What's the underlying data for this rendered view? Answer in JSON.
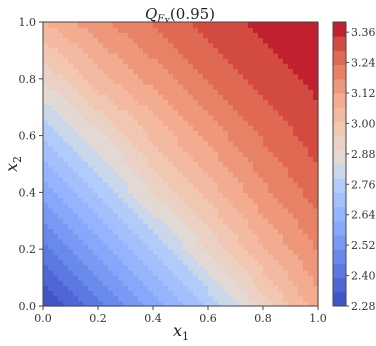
{
  "chart_data": {
    "type": "heatmap",
    "title": "Q_{F_X}(0.95)",
    "title_main": "Q",
    "title_sub": "F",
    "title_subsub": "X",
    "title_arg": "(0.95)",
    "xlabel": "x",
    "xlabel_sub": "1",
    "ylabel": "x",
    "ylabel_sub": "2",
    "xlim": [
      0.0,
      1.0
    ],
    "ylim": [
      0.0,
      1.0
    ],
    "x_ticks": [
      "0.0",
      "0.2",
      "0.4",
      "0.6",
      "0.8",
      "1.0"
    ],
    "y_ticks": [
      "0.0",
      "0.2",
      "0.4",
      "0.6",
      "0.8",
      "1.0"
    ],
    "colorbar": {
      "min": 2.28,
      "max": 3.4,
      "ticks": [
        "2.28",
        "2.40",
        "2.52",
        "2.64",
        "2.76",
        "2.88",
        "3.00",
        "3.12",
        "3.24",
        "3.36"
      ],
      "colormap": "coolwarm"
    },
    "grid": false,
    "grid_x": [
      0.0,
      0.2,
      0.4,
      0.6,
      0.8,
      1.0
    ],
    "grid_y": [
      0.0,
      0.2,
      0.4,
      0.6,
      0.8,
      1.0
    ],
    "z_grid": [
      [
        2.28,
        2.42,
        2.58,
        2.74,
        2.92,
        3.1
      ],
      [
        2.42,
        2.58,
        2.74,
        2.9,
        3.06,
        3.18
      ],
      [
        2.58,
        2.74,
        2.9,
        3.03,
        3.16,
        3.26
      ],
      [
        2.74,
        2.88,
        3.02,
        3.14,
        3.24,
        3.32
      ],
      [
        2.9,
        3.04,
        3.14,
        3.24,
        3.31,
        3.36
      ],
      [
        3.06,
        3.16,
        3.24,
        3.31,
        3.36,
        3.4
      ]
    ]
  }
}
